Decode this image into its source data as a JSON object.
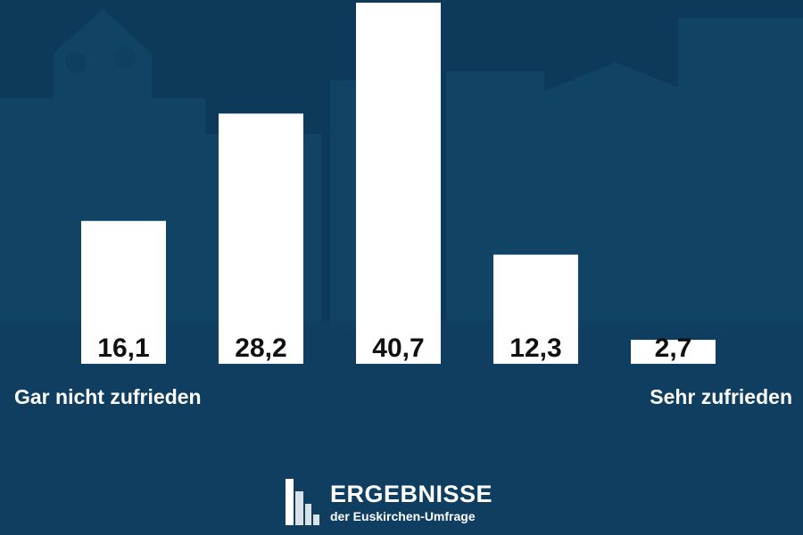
{
  "chart_data": {
    "type": "bar",
    "categories": [
      "",
      "",
      "",
      "",
      ""
    ],
    "values": [
      16.1,
      28.2,
      40.7,
      12.3,
      2.7
    ],
    "value_labels": [
      "16,1",
      "28,2",
      "40,7",
      "12,3",
      "2,7"
    ],
    "title": "",
    "xlabel": "",
    "ylabel": "",
    "ylim": [
      0,
      41
    ],
    "grid": false,
    "bar_color": "#ffffff",
    "label_color": "#111111"
  },
  "captions": {
    "left": "Gar nicht zufrieden",
    "right": "Sehr zufrieden"
  },
  "branding": {
    "title": "ERGEBNISSE",
    "subtitle": "der Euskirchen-Umfrage",
    "logo_icon": "bar-chart-logo-icon"
  },
  "colors": {
    "background": "#0d3a5a",
    "text": "#ffffff"
  }
}
